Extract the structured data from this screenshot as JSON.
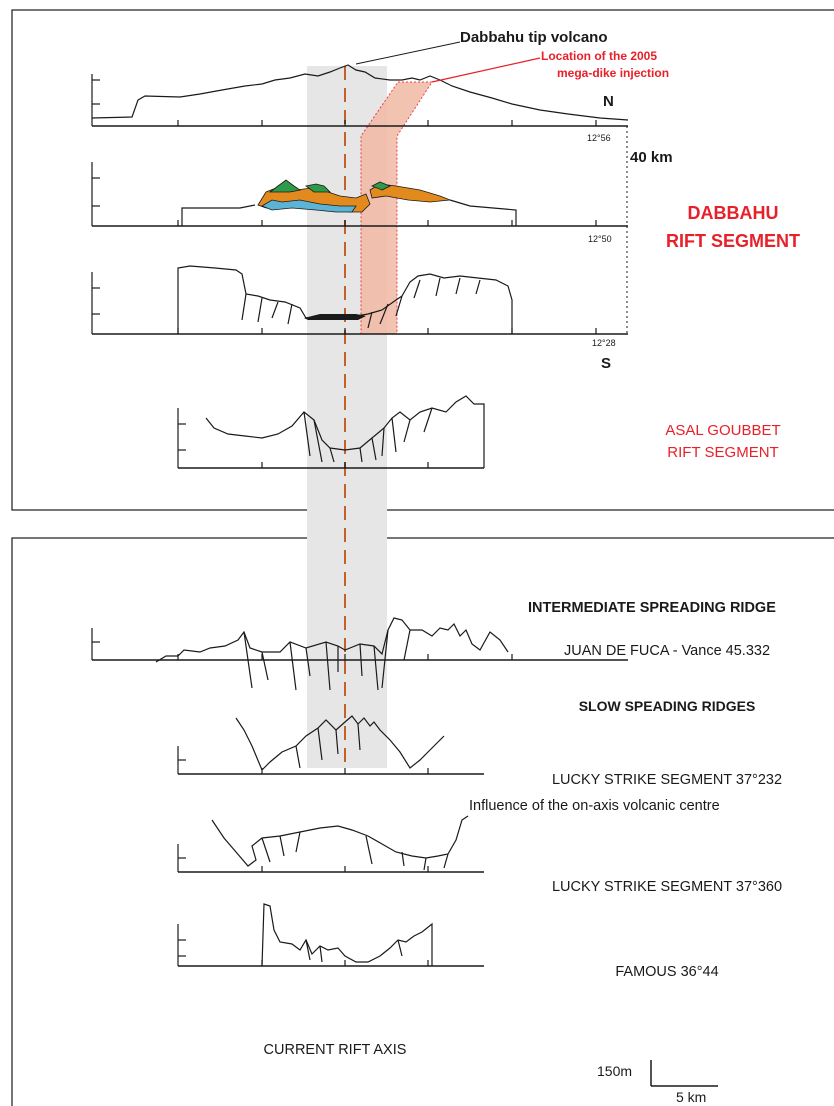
{
  "colors": {
    "red_text": "#e8202a",
    "axis_band": "#e6e6e6",
    "axis_line": "#c0622a",
    "dike_band": "#f2b9a4",
    "green": "#2e9a4a",
    "orange": "#e38a1e",
    "blue": "#5bb4d6"
  },
  "top_panel": {
    "volcano_label": "Dabbahu tip volcano",
    "dike_label_line1": "Location of the 2005",
    "dike_label_line2": "mega-dike injection",
    "north_label": "N",
    "south_label": "S",
    "lat_1": "12°56",
    "lat_2": "12°50",
    "lat_3": "12°28",
    "distance_label": "40 km",
    "dabbahu_line1": "DABBAHU",
    "dabbahu_line2": "RIFT SEGMENT",
    "asal_line1": "ASAL GOUBBET",
    "asal_line2": "RIFT SEGMENT"
  },
  "bottom_panel": {
    "intermediate_heading": "INTERMEDIATE SPREADING RIDGE",
    "juan_de_fuca": "JUAN DE FUCA - Vance 45.332",
    "slow_heading": "SLOW SPEADING RIDGES",
    "lucky_232": "LUCKY STRIKE SEGMENT 37°232",
    "lucky_232_note": "Influence of the on-axis volcanic centre",
    "lucky_360": "LUCKY STRIKE SEGMENT 37°360",
    "famous": "FAMOUS 36°44",
    "rift_axis": "CURRENT RIFT AXIS",
    "scale_vertical": "150m",
    "scale_horizontal": "5 km"
  }
}
